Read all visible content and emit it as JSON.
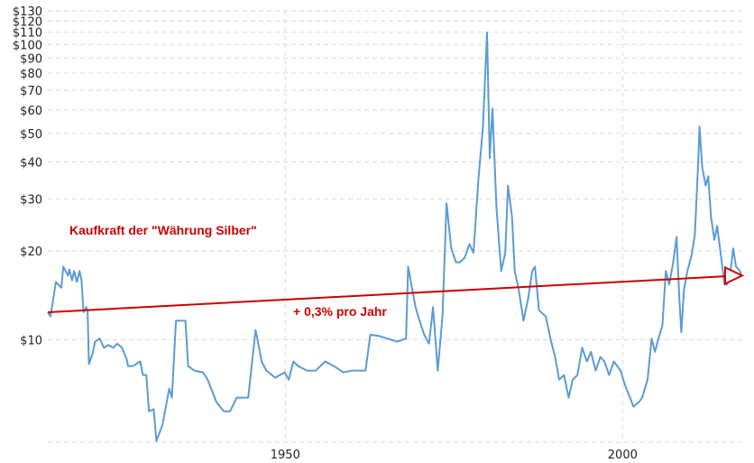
{
  "chart_data": {
    "type": "line",
    "title": "",
    "xlabel": "",
    "ylabel": "",
    "y_scale": "log",
    "xlim": [
      1914.8,
      2017.6
    ],
    "ylim": [
      4.5,
      130
    ],
    "grid": true,
    "x_ticks": [
      {
        "value": 1950,
        "label": "1950"
      },
      {
        "value": 2000,
        "label": "2000"
      }
    ],
    "y_ticks": [
      {
        "value": 10,
        "label": "$10"
      },
      {
        "value": 20,
        "label": "$20"
      },
      {
        "value": 30,
        "label": "$30"
      },
      {
        "value": 40,
        "label": "$40"
      },
      {
        "value": 50,
        "label": "$50"
      },
      {
        "value": 60,
        "label": "$60"
      },
      {
        "value": 70,
        "label": "$70"
      },
      {
        "value": 80,
        "label": "$80"
      },
      {
        "value": 90,
        "label": "$90"
      },
      {
        "value": 100,
        "label": "$100"
      },
      {
        "value": 110,
        "label": "$110"
      },
      {
        "value": 120,
        "label": "$120"
      },
      {
        "value": 130,
        "label": "$130"
      }
    ],
    "series": [
      {
        "color": "#5b9bd5",
        "points": [
          [
            1914.8,
            12.4
          ],
          [
            1915.2,
            12.0
          ],
          [
            1916.0,
            15.7
          ],
          [
            1916.8,
            15.0
          ],
          [
            1917.1,
            17.7
          ],
          [
            1917.8,
            16.5
          ],
          [
            1918.0,
            17.3
          ],
          [
            1918.4,
            15.9
          ],
          [
            1918.7,
            17.1
          ],
          [
            1919.1,
            15.7
          ],
          [
            1919.5,
            17.1
          ],
          [
            1919.8,
            15.9
          ],
          [
            1920.1,
            12.4
          ],
          [
            1920.5,
            12.9
          ],
          [
            1920.7,
            12.6
          ],
          [
            1920.9,
            8.27
          ],
          [
            1921.5,
            9.1
          ],
          [
            1921.8,
            9.86
          ],
          [
            1922.5,
            10.1
          ],
          [
            1923.1,
            9.4
          ],
          [
            1923.8,
            9.6
          ],
          [
            1924.5,
            9.4
          ],
          [
            1925.1,
            9.7
          ],
          [
            1925.8,
            9.4
          ],
          [
            1926.5,
            8.6
          ],
          [
            1926.7,
            8.15
          ],
          [
            1927.4,
            8.15
          ],
          [
            1928.5,
            8.45
          ],
          [
            1928.9,
            7.6
          ],
          [
            1929.4,
            7.6
          ],
          [
            1929.8,
            5.73
          ],
          [
            1930.5,
            5.82
          ],
          [
            1930.9,
            4.54
          ],
          [
            1931.8,
            5.16
          ],
          [
            1932.8,
            6.84
          ],
          [
            1933.2,
            6.37
          ],
          [
            1933.8,
            11.6
          ],
          [
            1935.2,
            11.6
          ],
          [
            1935.6,
            8.15
          ],
          [
            1936.5,
            7.87
          ],
          [
            1937.8,
            7.76
          ],
          [
            1938.5,
            7.33
          ],
          [
            1939.8,
            6.15
          ],
          [
            1940.9,
            5.73
          ],
          [
            1941.8,
            5.73
          ],
          [
            1942.8,
            6.37
          ],
          [
            1943.6,
            6.37
          ],
          [
            1944.5,
            6.37
          ],
          [
            1945.6,
            10.8
          ],
          [
            1946.5,
            8.45
          ],
          [
            1947.2,
            7.87
          ],
          [
            1948.5,
            7.44
          ],
          [
            1949.9,
            7.76
          ],
          [
            1950.5,
            7.33
          ],
          [
            1951.2,
            8.45
          ],
          [
            1951.9,
            8.15
          ],
          [
            1953.2,
            7.87
          ],
          [
            1954.5,
            7.87
          ],
          [
            1955.9,
            8.45
          ],
          [
            1957.2,
            8.15
          ],
          [
            1958.6,
            7.76
          ],
          [
            1959.9,
            7.87
          ],
          [
            1961.9,
            7.87
          ],
          [
            1962.6,
            10.4
          ],
          [
            1963.9,
            10.3
          ],
          [
            1966.6,
            9.86
          ],
          [
            1967.9,
            10.1
          ],
          [
            1968.2,
            17.7
          ],
          [
            1969.3,
            12.9
          ],
          [
            1969.9,
            11.6
          ],
          [
            1970.6,
            10.4
          ],
          [
            1971.3,
            9.7
          ],
          [
            1971.9,
            12.9
          ],
          [
            1972.6,
            7.87
          ],
          [
            1973.3,
            12.0
          ],
          [
            1973.9,
            29.0
          ],
          [
            1974.6,
            20.4
          ],
          [
            1975.3,
            18.3
          ],
          [
            1975.9,
            18.3
          ],
          [
            1976.6,
            19.0
          ],
          [
            1977.3,
            21.1
          ],
          [
            1977.9,
            19.7
          ],
          [
            1978.6,
            34.5
          ],
          [
            1979.3,
            52.7
          ],
          [
            1979.9,
            110
          ],
          [
            1980.3,
            41.2
          ],
          [
            1980.7,
            60.7
          ],
          [
            1981.3,
            27.9
          ],
          [
            1982.0,
            17.1
          ],
          [
            1982.6,
            19.7
          ],
          [
            1983.0,
            33.3
          ],
          [
            1983.6,
            26.1
          ],
          [
            1984.0,
            17.1
          ],
          [
            1984.6,
            14.8
          ],
          [
            1985.3,
            11.6
          ],
          [
            1986.0,
            13.8
          ],
          [
            1986.6,
            17.1
          ],
          [
            1987.0,
            17.7
          ],
          [
            1987.6,
            12.6
          ],
          [
            1988.6,
            12.0
          ],
          [
            1989.3,
            10.1
          ],
          [
            1990.0,
            8.75
          ],
          [
            1990.6,
            7.33
          ],
          [
            1991.3,
            7.6
          ],
          [
            1992.0,
            6.37
          ],
          [
            1992.6,
            7.33
          ],
          [
            1993.3,
            7.6
          ],
          [
            1994.0,
            9.4
          ],
          [
            1994.7,
            8.45
          ],
          [
            1995.3,
            9.1
          ],
          [
            1996.0,
            7.87
          ],
          [
            1996.7,
            8.75
          ],
          [
            1997.3,
            8.45
          ],
          [
            1998.0,
            7.6
          ],
          [
            1998.7,
            8.45
          ],
          [
            1999.7,
            7.87
          ],
          [
            2000.3,
            7.08
          ],
          [
            2001.1,
            6.37
          ],
          [
            2001.6,
            5.94
          ],
          [
            2002.4,
            6.15
          ],
          [
            2002.9,
            6.37
          ],
          [
            2003.7,
            7.33
          ],
          [
            2004.3,
            10.1
          ],
          [
            2004.8,
            9.1
          ],
          [
            2005.3,
            10.1
          ],
          [
            2005.9,
            11.2
          ],
          [
            2006.4,
            17.1
          ],
          [
            2006.9,
            15.4
          ],
          [
            2007.5,
            18.3
          ],
          [
            2008.0,
            22.3
          ],
          [
            2008.4,
            13.8
          ],
          [
            2008.7,
            10.6
          ],
          [
            2009.1,
            14.8
          ],
          [
            2009.6,
            17.1
          ],
          [
            2010.2,
            19.2
          ],
          [
            2010.7,
            22.6
          ],
          [
            2011.2,
            39.8
          ],
          [
            2011.4,
            52.7
          ],
          [
            2011.8,
            38.4
          ],
          [
            2012.3,
            33.3
          ],
          [
            2012.7,
            35.8
          ],
          [
            2013.1,
            26.1
          ],
          [
            2013.6,
            21.8
          ],
          [
            2014.0,
            24.3
          ],
          [
            2014.7,
            18.3
          ],
          [
            2015.1,
            15.4
          ],
          [
            2015.5,
            15.4
          ],
          [
            2016.0,
            17.1
          ],
          [
            2016.4,
            20.4
          ],
          [
            2016.8,
            17.7
          ],
          [
            2017.4,
            17.1
          ],
          [
            2017.6,
            16.5
          ]
        ]
      }
    ],
    "trend": {
      "color": "#cc0000",
      "start": [
        1914.8,
        12.4
      ],
      "end": [
        2017.6,
        16.5
      ]
    },
    "annotations": [
      {
        "text": "Kaufkraft der \"Währung Silber\""
      },
      {
        "text": "+ 0,3% pro Jahr"
      }
    ]
  }
}
